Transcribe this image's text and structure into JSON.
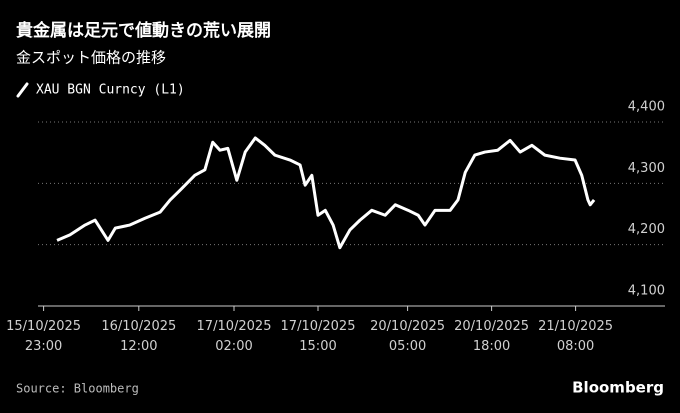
{
  "chart_data": {
    "type": "line",
    "title": "貴金属は足元で値動きの荒い展開",
    "subtitle": "金スポット価格の推移",
    "source": "Source: Bloomberg",
    "brand": "Bloomberg",
    "grid": true,
    "xlim": [
      0,
      100
    ],
    "ylim": [
      4100,
      4400
    ],
    "yticks": [
      {
        "value": 4100,
        "label": "4,100"
      },
      {
        "value": 4200,
        "label": "4,200"
      },
      {
        "value": 4300,
        "label": "4,300"
      },
      {
        "value": 4400,
        "label": "4,400"
      }
    ],
    "xticks": [
      {
        "value": 1,
        "label": "15/10/2025\n23:00"
      },
      {
        "value": 18,
        "label": "16/10/2025\n12:00"
      },
      {
        "value": 35,
        "label": "17/10/2025\n02:00"
      },
      {
        "value": 50,
        "label": "17/10/2025\n15:00"
      },
      {
        "value": 66,
        "label": "20/10/2025\n05:00"
      },
      {
        "value": 81,
        "label": "20/10/2025\n18:00"
      },
      {
        "value": 96,
        "label": "21/10/2025\n08:00"
      }
    ],
    "x": [
      3.4,
      5.7,
      8.4,
      10.2,
      12.5,
      13.8,
      16.4,
      19.1,
      21.8,
      23.6,
      25.4,
      28.0,
      29.8,
      31.2,
      32.5,
      33.9,
      35.5,
      37.0,
      38.8,
      40.5,
      42.3,
      45.0,
      46.8,
      47.7,
      48.9,
      50.0,
      51.3,
      52.7,
      53.9,
      55.7,
      57.5,
      59.6,
      62.0,
      63.8,
      66.1,
      67.9,
      69.1,
      70.9,
      73.6,
      75.0,
      76.3,
      78.0,
      79.8,
      82.1,
      84.3,
      86.1,
      88.2,
      90.5,
      93.2,
      95.9,
      97.1,
      98.2,
      98.6,
      99.3
    ],
    "series": [
      {
        "name": "XAU BGN Curncy (L1)",
        "color": "#ffffff",
        "values": [
          4207,
          4216,
          4232,
          4240,
          4207,
          4227,
          4232,
          4243,
          4253,
          4273,
          4289,
          4313,
          4322,
          4367,
          4354,
          4357,
          4305,
          4351,
          4374,
          4362,
          4346,
          4338,
          4330,
          4297,
          4313,
          4248,
          4256,
          4232,
          4195,
          4224,
          4240,
          4256,
          4248,
          4265,
          4256,
          4248,
          4232,
          4256,
          4256,
          4273,
          4318,
          4346,
          4351,
          4354,
          4370,
          4351,
          4362,
          4346,
          4341,
          4338,
          4313,
          4273,
          4265,
          4273
        ]
      }
    ]
  }
}
